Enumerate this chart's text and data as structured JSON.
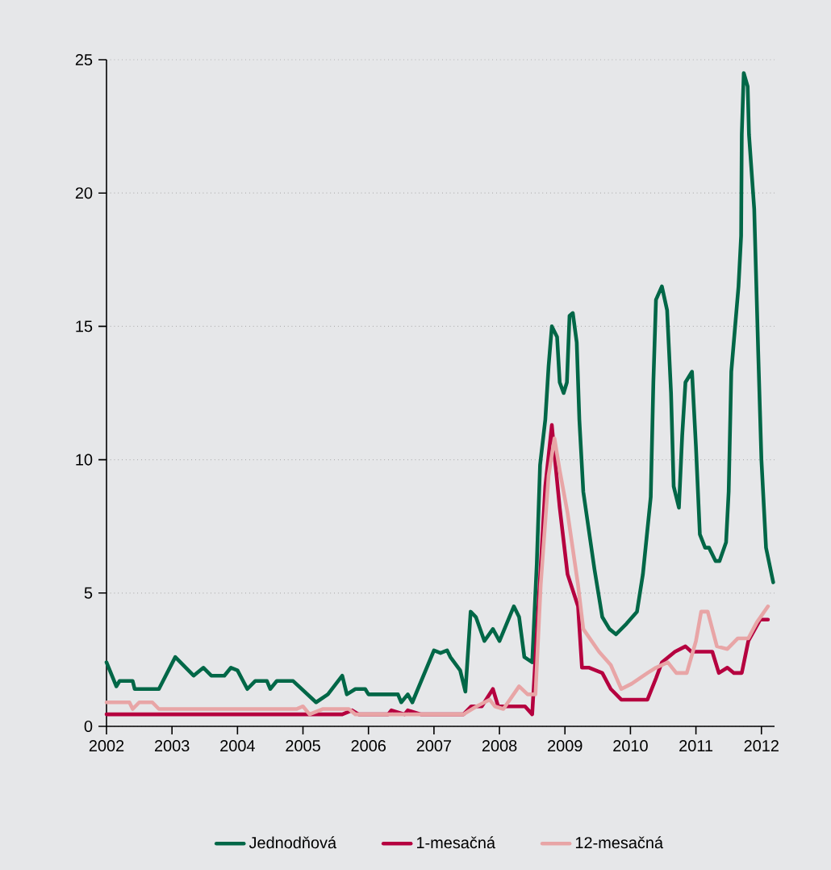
{
  "chart_data": {
    "type": "line",
    "xlim": [
      2002,
      2012.2
    ],
    "ylim": [
      0,
      25
    ],
    "xticks": [
      2002,
      2003,
      2004,
      2005,
      2006,
      2007,
      2008,
      2009,
      2010,
      2011,
      2012
    ],
    "yticks": [
      0,
      5,
      10,
      15,
      20,
      25
    ],
    "grid": "y",
    "legend": "bottom",
    "marker": "none",
    "line_style": "solid",
    "series": [
      {
        "name": "Jednodňová",
        "color": "#006747",
        "x": [
          2002.0,
          2002.15,
          2002.2,
          2002.4,
          2002.43,
          2002.8,
          2003.05,
          2003.33,
          2003.48,
          2003.6,
          2003.8,
          2003.9,
          2004.0,
          2004.15,
          2004.27,
          2004.45,
          2004.5,
          2004.6,
          2004.85,
          2005.2,
          2005.38,
          2005.6,
          2005.67,
          2005.8,
          2005.95,
          2006.0,
          2006.45,
          2006.5,
          2006.6,
          2006.67,
          2007.0,
          2007.1,
          2007.2,
          2007.25,
          2007.4,
          2007.48,
          2007.56,
          2007.64,
          2007.77,
          2007.9,
          2008.0,
          2008.22,
          2008.3,
          2008.38,
          2008.5,
          2008.57,
          2008.62,
          2008.7,
          2008.75,
          2008.8,
          2008.88,
          2008.92,
          2008.98,
          2009.03,
          2009.07,
          2009.12,
          2009.18,
          2009.22,
          2009.28,
          2009.45,
          2009.57,
          2009.68,
          2009.78,
          2009.94,
          2010.1,
          2010.19,
          2010.31,
          2010.35,
          2010.39,
          2010.48,
          2010.56,
          2010.62,
          2010.66,
          2010.74,
          2010.79,
          2010.84,
          2010.94,
          2011.0,
          2011.06,
          2011.14,
          2011.2,
          2011.3,
          2011.36,
          2011.46,
          2011.5,
          2011.54,
          2011.65,
          2011.69,
          2011.7,
          2011.73,
          2011.79,
          2011.81,
          2011.89,
          2011.95,
          2012.0,
          2012.07,
          2012.18
        ],
        "values": [
          2.4,
          1.5,
          1.7,
          1.7,
          1.4,
          1.4,
          2.6,
          1.9,
          2.2,
          1.9,
          1.9,
          2.2,
          2.1,
          1.4,
          1.7,
          1.7,
          1.4,
          1.7,
          1.7,
          0.9,
          1.2,
          1.9,
          1.2,
          1.4,
          1.4,
          1.2,
          1.2,
          0.9,
          1.2,
          0.9,
          2.85,
          2.75,
          2.85,
          2.6,
          2.1,
          1.3,
          4.3,
          4.1,
          3.2,
          3.65,
          3.2,
          4.5,
          4.1,
          2.6,
          2.4,
          6.1,
          9.8,
          11.5,
          13.5,
          15.0,
          14.6,
          12.9,
          12.5,
          12.9,
          15.4,
          15.5,
          14.4,
          11.5,
          8.8,
          5.9,
          4.1,
          3.65,
          3.45,
          3.85,
          4.3,
          5.7,
          8.6,
          12.9,
          16.0,
          16.5,
          15.6,
          12.5,
          9.0,
          8.2,
          10.9,
          12.9,
          13.3,
          10.5,
          7.2,
          6.7,
          6.7,
          6.2,
          6.2,
          6.9,
          8.8,
          13.3,
          16.5,
          18.4,
          22.2,
          24.5,
          24.0,
          22.2,
          19.4,
          14.1,
          10.0,
          6.7,
          5.4
        ]
      },
      {
        "name": "1-mesačná",
        "color": "#b5003f",
        "x": [
          2002.0,
          2004.85,
          2005.2,
          2005.6,
          2005.75,
          2005.85,
          2006.3,
          2006.35,
          2006.55,
          2006.6,
          2006.8,
          2007.45,
          2007.57,
          2007.73,
          2007.9,
          2007.98,
          2008.14,
          2008.39,
          2008.5,
          2008.7,
          2008.8,
          2008.84,
          2008.92,
          2009.04,
          2009.2,
          2009.26,
          2009.37,
          2009.57,
          2009.7,
          2009.86,
          2010.26,
          2010.39,
          2010.48,
          2010.68,
          2010.84,
          2010.93,
          2011.25,
          2011.35,
          2011.48,
          2011.58,
          2011.7,
          2011.8,
          2011.98,
          2012.1
        ],
        "values": [
          0.45,
          0.45,
          0.45,
          0.45,
          0.6,
          0.45,
          0.45,
          0.6,
          0.45,
          0.6,
          0.45,
          0.45,
          0.75,
          0.75,
          1.4,
          0.75,
          0.75,
          0.75,
          0.45,
          9.0,
          11.3,
          10.2,
          8.2,
          5.7,
          4.5,
          2.2,
          2.2,
          2.0,
          1.4,
          1.0,
          1.0,
          1.8,
          2.4,
          2.8,
          3.0,
          2.8,
          2.8,
          2.0,
          2.2,
          2.0,
          2.0,
          3.2,
          4.0,
          4.0
        ]
      },
      {
        "name": "12-mesačná",
        "color": "#e8a5a6",
        "x": [
          2002.0,
          2002.35,
          2002.4,
          2002.5,
          2002.7,
          2002.8,
          2004.9,
          2005.0,
          2005.1,
          2005.3,
          2005.7,
          2005.8,
          2007.45,
          2007.65,
          2007.85,
          2007.93,
          2008.06,
          2008.3,
          2008.43,
          2008.55,
          2008.63,
          2008.75,
          2008.84,
          2008.92,
          2009.04,
          2009.2,
          2009.28,
          2009.52,
          2009.7,
          2009.86,
          2010.02,
          2010.26,
          2010.39,
          2010.57,
          2010.7,
          2010.86,
          2011.0,
          2011.08,
          2011.18,
          2011.32,
          2011.48,
          2011.64,
          2011.8,
          2011.93,
          2012.1
        ],
        "values": [
          0.9,
          0.9,
          0.65,
          0.9,
          0.9,
          0.65,
          0.65,
          0.75,
          0.45,
          0.65,
          0.65,
          0.45,
          0.45,
          0.75,
          1.0,
          0.75,
          0.65,
          1.5,
          1.2,
          1.2,
          5.3,
          9.4,
          10.8,
          9.6,
          8.0,
          5.3,
          3.65,
          2.8,
          2.3,
          1.4,
          1.6,
          2.0,
          2.2,
          2.4,
          2.0,
          2.0,
          3.2,
          4.3,
          4.3,
          3.0,
          2.9,
          3.3,
          3.3,
          3.9,
          4.5
        ]
      }
    ]
  }
}
